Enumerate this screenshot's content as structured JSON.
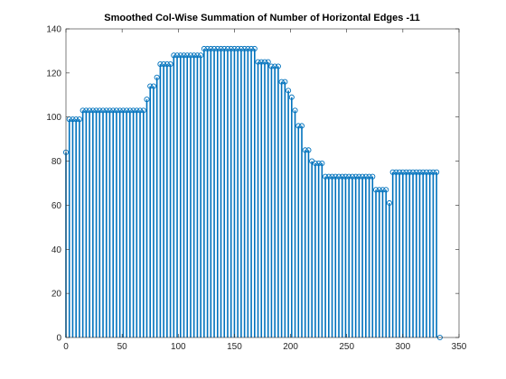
{
  "chart_data": {
    "type": "stem",
    "title": "Smoothed Col-Wise Summation of Number of Horizontal Edges -11",
    "xlabel": "",
    "ylabel": "",
    "xlim": [
      0,
      350
    ],
    "ylim": [
      0,
      140
    ],
    "xticks": [
      0,
      50,
      100,
      150,
      200,
      250,
      300,
      350
    ],
    "yticks": [
      0,
      20,
      40,
      60,
      80,
      100,
      120,
      140
    ],
    "grid": false,
    "series_color": "#0072bd",
    "step": 3,
    "segments": [
      {
        "x_from": 0,
        "x_to": 0,
        "y": 84
      },
      {
        "x_from": 3,
        "x_to": 12,
        "y": 99
      },
      {
        "x_from": 15,
        "x_to": 69,
        "y": 103
      },
      {
        "x_from": 72,
        "x_to": 72,
        "y": 108
      },
      {
        "x_from": 75,
        "x_to": 78,
        "y": 114
      },
      {
        "x_from": 81,
        "x_to": 81,
        "y": 118
      },
      {
        "x_from": 84,
        "x_to": 93,
        "y": 124
      },
      {
        "x_from": 96,
        "x_to": 120,
        "y": 128
      },
      {
        "x_from": 123,
        "x_to": 168,
        "y": 131
      },
      {
        "x_from": 171,
        "x_to": 180,
        "y": 125
      },
      {
        "x_from": 183,
        "x_to": 189,
        "y": 123
      },
      {
        "x_from": 192,
        "x_to": 195,
        "y": 116
      },
      {
        "x_from": 198,
        "x_to": 198,
        "y": 112
      },
      {
        "x_from": 201,
        "x_to": 201,
        "y": 109
      },
      {
        "x_from": 204,
        "x_to": 204,
        "y": 103
      },
      {
        "x_from": 207,
        "x_to": 210,
        "y": 96
      },
      {
        "x_from": 213,
        "x_to": 216,
        "y": 85
      },
      {
        "x_from": 219,
        "x_to": 219,
        "y": 80
      },
      {
        "x_from": 222,
        "x_to": 228,
        "y": 79
      },
      {
        "x_from": 231,
        "x_to": 273,
        "y": 73
      },
      {
        "x_from": 276,
        "x_to": 285,
        "y": 67
      },
      {
        "x_from": 288,
        "x_to": 288,
        "y": 61
      },
      {
        "x_from": 291,
        "x_to": 291,
        "y": 75
      },
      {
        "x_from": 294,
        "x_to": 330,
        "y": 75
      },
      {
        "x_from": 333,
        "x_to": 333,
        "y": 0
      }
    ]
  }
}
